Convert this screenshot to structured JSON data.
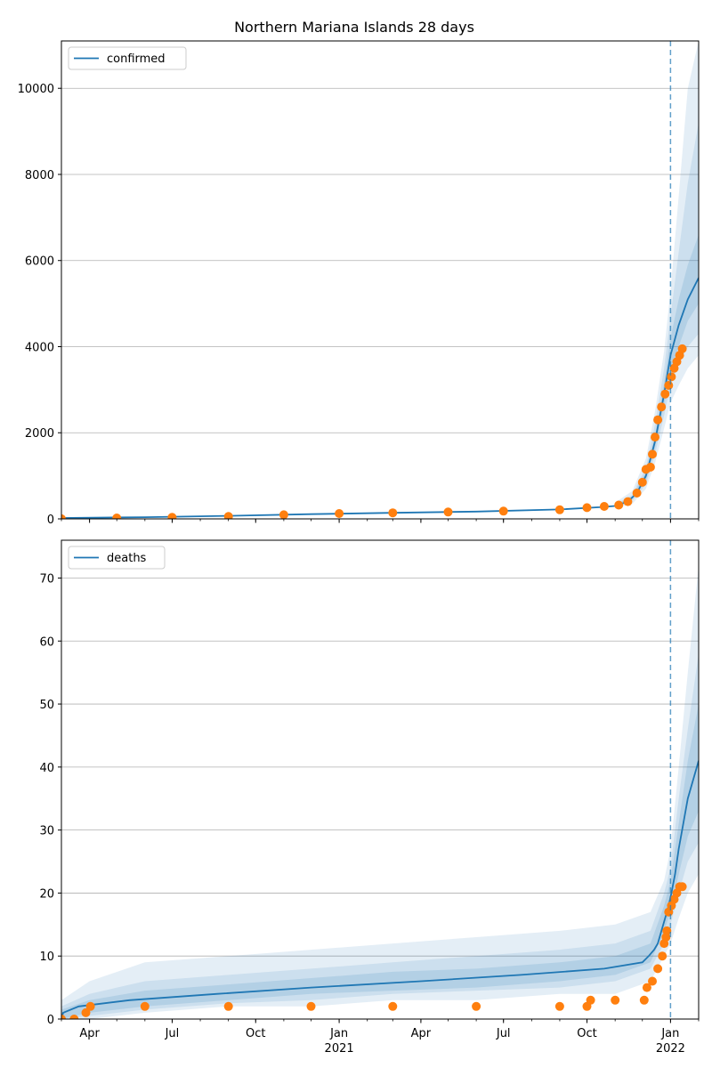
{
  "chart_data": {
    "title": "Northern Mariana Islands 28 days",
    "type": "line",
    "x_axis": {
      "type": "date",
      "range": [
        "2020-03-01",
        "2022-02-01"
      ],
      "ticks": [
        {
          "date": "2020-04-01",
          "label": "Apr",
          "year": ""
        },
        {
          "date": "2020-07-01",
          "label": "Jul",
          "year": ""
        },
        {
          "date": "2020-10-01",
          "label": "Oct",
          "year": ""
        },
        {
          "date": "2021-01-01",
          "label": "Jan",
          "year": "2021"
        },
        {
          "date": "2021-04-01",
          "label": "Apr",
          "year": ""
        },
        {
          "date": "2021-07-01",
          "label": "Jul",
          "year": ""
        },
        {
          "date": "2021-10-01",
          "label": "Oct",
          "year": ""
        },
        {
          "date": "2022-01-01",
          "label": "Jan",
          "year": "2022"
        }
      ],
      "forecast_start": "2022-01-01"
    },
    "panels": [
      {
        "id": "confirmed",
        "legend": "confirmed",
        "ylim": [
          0,
          11100
        ],
        "yticks": [
          0,
          2000,
          4000,
          6000,
          8000,
          10000
        ],
        "grid": true,
        "legend_position": "top-left",
        "model_line": [
          [
            "2020-03-01",
            20
          ],
          [
            "2020-06-01",
            40
          ],
          [
            "2020-09-01",
            70
          ],
          [
            "2020-12-01",
            110
          ],
          [
            "2021-03-01",
            140
          ],
          [
            "2021-06-01",
            170
          ],
          [
            "2021-09-01",
            220
          ],
          [
            "2021-10-15",
            270
          ],
          [
            "2021-11-01",
            300
          ],
          [
            "2021-11-15",
            400
          ],
          [
            "2021-11-25",
            600
          ],
          [
            "2021-12-05",
            1000
          ],
          [
            "2021-12-15",
            1800
          ],
          [
            "2021-12-25",
            2900
          ],
          [
            "2022-01-01",
            3800
          ],
          [
            "2022-01-10",
            4500
          ],
          [
            "2022-01-20",
            5100
          ],
          [
            "2022-02-01",
            5600
          ]
        ],
        "bands": [
          {
            "level": "outer",
            "points": [
              [
                "2021-11-01",
                250,
                380
              ],
              [
                "2021-11-20",
                350,
                650
              ],
              [
                "2021-12-05",
                700,
                1400
              ],
              [
                "2021-12-15",
                1300,
                2500
              ],
              [
                "2021-12-25",
                2100,
                3900
              ],
              [
                "2022-01-01",
                2700,
                5300
              ],
              [
                "2022-01-10",
                3100,
                7500
              ],
              [
                "2022-01-20",
                3500,
                10000
              ],
              [
                "2022-02-01",
                3800,
                11100
              ]
            ]
          },
          {
            "level": "mid",
            "points": [
              [
                "2021-11-01",
                270,
                340
              ],
              [
                "2021-11-20",
                420,
                560
              ],
              [
                "2021-12-05",
                800,
                1200
              ],
              [
                "2021-12-15",
                1500,
                2200
              ],
              [
                "2021-12-25",
                2400,
                3500
              ],
              [
                "2022-01-01",
                3100,
                4700
              ],
              [
                "2022-01-10",
                3600,
                6200
              ],
              [
                "2022-01-20",
                4000,
                7800
              ],
              [
                "2022-02-01",
                4300,
                9200
              ]
            ]
          },
          {
            "level": "inner",
            "points": [
              [
                "2021-11-01",
                285,
                320
              ],
              [
                "2021-11-20",
                450,
                520
              ],
              [
                "2021-12-05",
                880,
                1100
              ],
              [
                "2021-12-15",
                1650,
                1950
              ],
              [
                "2021-12-25",
                2650,
                3150
              ],
              [
                "2022-01-01",
                3450,
                4200
              ],
              [
                "2022-01-10",
                4000,
                5100
              ],
              [
                "2022-01-20",
                4600,
                5900
              ],
              [
                "2022-02-01",
                5000,
                6600
              ]
            ]
          }
        ],
        "observed": [
          [
            "2020-03-01",
            2
          ],
          [
            "2020-05-01",
            20
          ],
          [
            "2020-07-01",
            35
          ],
          [
            "2020-09-01",
            55
          ],
          [
            "2020-11-01",
            95
          ],
          [
            "2021-01-01",
            125
          ],
          [
            "2021-03-01",
            140
          ],
          [
            "2021-05-01",
            160
          ],
          [
            "2021-07-01",
            180
          ],
          [
            "2021-09-01",
            210
          ],
          [
            "2021-10-01",
            260
          ],
          [
            "2021-10-20",
            290
          ],
          [
            "2021-11-05",
            320
          ],
          [
            "2021-11-15",
            400
          ],
          [
            "2021-11-25",
            600
          ],
          [
            "2021-12-01",
            850
          ],
          [
            "2021-12-05",
            1150
          ],
          [
            "2021-12-10",
            1200
          ],
          [
            "2021-12-12",
            1500
          ],
          [
            "2021-12-15",
            1900
          ],
          [
            "2021-12-18",
            2300
          ],
          [
            "2021-12-22",
            2600
          ],
          [
            "2021-12-26",
            2900
          ],
          [
            "2021-12-30",
            3100
          ],
          [
            "2022-01-02",
            3300
          ],
          [
            "2022-01-05",
            3500
          ],
          [
            "2022-01-08",
            3650
          ],
          [
            "2022-01-11",
            3800
          ],
          [
            "2022-01-14",
            3950
          ]
        ]
      },
      {
        "id": "deaths",
        "legend": "deaths",
        "ylim": [
          0,
          76
        ],
        "yticks": [
          0,
          10,
          20,
          30,
          40,
          50,
          60,
          70
        ],
        "grid": true,
        "legend_position": "top-left",
        "model_line": [
          [
            "2020-03-01",
            0
          ],
          [
            "2020-03-03",
            1
          ],
          [
            "2020-03-20",
            2
          ],
          [
            "2020-05-15",
            3
          ],
          [
            "2020-08-20",
            4
          ],
          [
            "2020-12-01",
            5
          ],
          [
            "2021-04-01",
            6
          ],
          [
            "2021-07-20",
            7
          ],
          [
            "2021-10-20",
            8
          ],
          [
            "2021-12-01",
            9
          ],
          [
            "2021-12-08",
            10
          ],
          [
            "2021-12-14",
            11
          ],
          [
            "2021-12-18",
            12
          ],
          [
            "2021-12-22",
            14
          ],
          [
            "2021-12-26",
            16
          ],
          [
            "2021-12-30",
            18
          ],
          [
            "2022-01-02",
            20
          ],
          [
            "2022-01-06",
            23
          ],
          [
            "2022-01-10",
            27
          ],
          [
            "2022-01-15",
            31
          ],
          [
            "2022-01-20",
            35
          ],
          [
            "2022-01-26",
            38
          ],
          [
            "2022-02-01",
            41
          ]
        ],
        "bands": [
          {
            "level": "outer",
            "points": [
              [
                "2020-03-01",
                0,
                3
              ],
              [
                "2020-04-01",
                0,
                6
              ],
              [
                "2020-06-01",
                1,
                9
              ],
              [
                "2020-09-01",
                2,
                10
              ],
              [
                "2020-12-01",
                2,
                11
              ],
              [
                "2021-03-01",
                3,
                12
              ],
              [
                "2021-06-01",
                3,
                13
              ],
              [
                "2021-09-01",
                4,
                14
              ],
              [
                "2021-11-01",
                4,
                15
              ],
              [
                "2021-12-10",
                6,
                17
              ],
              [
                "2021-12-25",
                10,
                22
              ],
              [
                "2022-01-01",
                12,
                27
              ],
              [
                "2022-01-10",
                16,
                40
              ],
              [
                "2022-01-20",
                20,
                55
              ],
              [
                "2022-02-01",
                23,
                72
              ]
            ]
          },
          {
            "level": "mid",
            "points": [
              [
                "2020-03-01",
                0,
                2
              ],
              [
                "2020-04-01",
                0.5,
                4
              ],
              [
                "2020-06-01",
                1.5,
                6
              ],
              [
                "2020-09-01",
                2.5,
                7
              ],
              [
                "2020-12-01",
                3,
                8
              ],
              [
                "2021-03-01",
                4,
                9
              ],
              [
                "2021-06-01",
                4.5,
                10
              ],
              [
                "2021-09-01",
                5,
                11
              ],
              [
                "2021-11-01",
                6,
                12
              ],
              [
                "2021-12-10",
                8,
                14
              ],
              [
                "2021-12-25",
                12,
                20
              ],
              [
                "2022-01-01",
                15,
                24
              ],
              [
                "2022-01-10",
                20,
                35
              ],
              [
                "2022-01-20",
                25,
                46
              ],
              [
                "2022-02-01",
                28,
                58
              ]
            ]
          },
          {
            "level": "inner",
            "points": [
              [
                "2020-03-01",
                0,
                1.5
              ],
              [
                "2020-04-01",
                1,
                3
              ],
              [
                "2020-06-01",
                2,
                4.5
              ],
              [
                "2020-09-01",
                3,
                5.5
              ],
              [
                "2020-12-01",
                4,
                6.5
              ],
              [
                "2021-03-01",
                4.5,
                7.5
              ],
              [
                "2021-06-01",
                5,
                8
              ],
              [
                "2021-09-01",
                6,
                9
              ],
              [
                "2021-11-01",
                7,
                10
              ],
              [
                "2021-12-10",
                9,
                12
              ],
              [
                "2021-12-25",
                14,
                18
              ],
              [
                "2022-01-01",
                17,
                22
              ],
              [
                "2022-01-10",
                23,
                31
              ],
              [
                "2022-01-20",
                29,
                41
              ],
              [
                "2022-02-01",
                33,
                50
              ]
            ]
          }
        ],
        "observed": [
          [
            "2020-03-01",
            0
          ],
          [
            "2020-03-15",
            0
          ],
          [
            "2020-03-28",
            1
          ],
          [
            "2020-04-02",
            2
          ],
          [
            "2020-06-01",
            2
          ],
          [
            "2020-09-01",
            2
          ],
          [
            "2020-12-01",
            2
          ],
          [
            "2021-03-01",
            2
          ],
          [
            "2021-06-01",
            2
          ],
          [
            "2021-09-01",
            2
          ],
          [
            "2021-10-01",
            2
          ],
          [
            "2021-10-05",
            3
          ],
          [
            "2021-11-01",
            3
          ],
          [
            "2021-12-03",
            3
          ],
          [
            "2021-12-06",
            5
          ],
          [
            "2021-12-12",
            6
          ],
          [
            "2021-12-18",
            8
          ],
          [
            "2021-12-23",
            10
          ],
          [
            "2021-12-25",
            12
          ],
          [
            "2021-12-27",
            13
          ],
          [
            "2021-12-28",
            14
          ],
          [
            "2021-12-30",
            17
          ],
          [
            "2022-01-02",
            18
          ],
          [
            "2022-01-05",
            19
          ],
          [
            "2022-01-08",
            20
          ],
          [
            "2022-01-11",
            21
          ],
          [
            "2022-01-14",
            21
          ]
        ]
      }
    ]
  },
  "colors": {
    "model": "#1f77b4",
    "band": "#1f77b4",
    "observed": "#ff7f0e",
    "forecast_line": "#1f77b4",
    "grid": "#b0b0b0"
  }
}
